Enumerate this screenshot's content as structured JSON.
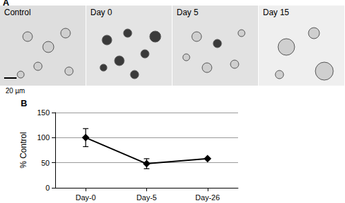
{
  "figure": {
    "panel_a": {
      "label": "A",
      "images": [
        "Control",
        "Day 0",
        "Day 5",
        "Day 15"
      ],
      "scale_bar": "20 µm"
    },
    "panel_b": {
      "label": "B"
    }
  },
  "chart_data": {
    "type": "line",
    "categories": [
      "Day-0",
      "Day-5",
      "Day-26"
    ],
    "values": [
      100,
      48,
      58
    ],
    "errors": [
      18,
      10,
      null
    ],
    "y_label": "% Control",
    "ylim": [
      0,
      150
    ],
    "yticks": [
      0,
      50,
      100,
      150
    ],
    "grid": true,
    "color": "#000000",
    "marker": "diamond",
    "line_style": "solid"
  }
}
